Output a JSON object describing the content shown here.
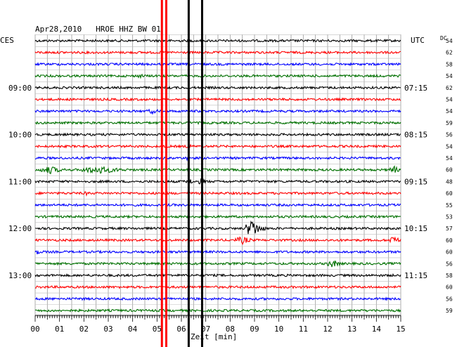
{
  "chart_data": {
    "type": "line",
    "title": "Apr28,2010   HROE HHZ BW 01",
    "left_timezone": "CES",
    "right_timezone": "UTC",
    "right_header": "DC",
    "xlabel": "Zeit [min]",
    "xlim": [
      0,
      15
    ],
    "x_ticks": [
      "00",
      "01",
      "02",
      "03",
      "04",
      "05",
      "06",
      "07",
      "08",
      "09",
      "10",
      "11",
      "12",
      "13",
      "14",
      "15"
    ],
    "grid": true,
    "left_hour_labels": [
      {
        "trace": 4,
        "text": "09:00"
      },
      {
        "trace": 8,
        "text": "10:00"
      },
      {
        "trace": 12,
        "text": "11:00"
      },
      {
        "trace": 16,
        "text": "12:00"
      },
      {
        "trace": 20,
        "text": "13:00"
      }
    ],
    "right_time_labels": [
      {
        "trace": 4,
        "text": "07:15"
      },
      {
        "trace": 8,
        "text": "08:15"
      },
      {
        "trace": 12,
        "text": "09:15"
      },
      {
        "trace": 16,
        "text": "10:15"
      },
      {
        "trace": 20,
        "text": "11:15"
      }
    ],
    "dc_values": [
      "54",
      "62",
      "58",
      "54",
      "62",
      "54",
      "54",
      "59",
      "56",
      "54",
      "54",
      "60",
      "48",
      "60",
      "55",
      "53",
      "57",
      "60",
      "60",
      "56",
      "58",
      "60",
      "56",
      "59"
    ],
    "trace_colors": [
      "#000000",
      "#ff0000",
      "#0000ff",
      "#007000"
    ],
    "vertical_markers": [
      {
        "x": 5.2,
        "color": "#ff0000",
        "width": 3
      },
      {
        "x": 5.38,
        "color": "#ff0000",
        "width": 3
      },
      {
        "x": 6.3,
        "color": "#000000",
        "width": 3
      },
      {
        "x": 6.85,
        "color": "#000000",
        "width": 3
      }
    ],
    "events": [
      {
        "trace": 16,
        "x": 8.9,
        "amplitude": 14,
        "duration": 0.5
      },
      {
        "trace": 17,
        "x": 8.5,
        "amplitude": 6,
        "duration": 0.6
      },
      {
        "trace": 17,
        "x": 14.7,
        "amplitude": 9,
        "duration": 0.3
      },
      {
        "trace": 19,
        "x": 12.2,
        "amplitude": 6,
        "duration": 0.5
      },
      {
        "trace": 11,
        "x": 0.6,
        "amplitude": 6,
        "duration": 0.8
      },
      {
        "trace": 11,
        "x": 2.6,
        "amplitude": 6,
        "duration": 1.5
      },
      {
        "trace": 11,
        "x": 14.7,
        "amplitude": 7,
        "duration": 0.3
      },
      {
        "trace": 6,
        "x": 4.8,
        "amplitude": 4,
        "duration": 0.5
      },
      {
        "trace": 3,
        "x": 4.3,
        "amplitude": 3,
        "duration": 0.6
      },
      {
        "trace": 13,
        "x": 2.1,
        "amplitude": 3,
        "duration": 0.5
      },
      {
        "trace": 12,
        "x": 6.3,
        "amplitude": 6,
        "duration": 0.3
      },
      {
        "trace": 12,
        "x": 6.85,
        "amplitude": 6,
        "duration": 0.3
      },
      {
        "trace": 10,
        "x": 6.3,
        "amplitude": 5,
        "duration": 0.25
      },
      {
        "trace": 9,
        "x": 6.3,
        "amplitude": 4,
        "duration": 0.25
      },
      {
        "trace": 18,
        "x": 0.1,
        "amplitude": 5,
        "duration": 0.15
      },
      {
        "trace": 22,
        "x": 1.9,
        "amplitude": 3,
        "duration": 0.3
      },
      {
        "trace": 15,
        "x": 9.9,
        "amplitude": 2.5,
        "duration": 0.3
      }
    ]
  }
}
